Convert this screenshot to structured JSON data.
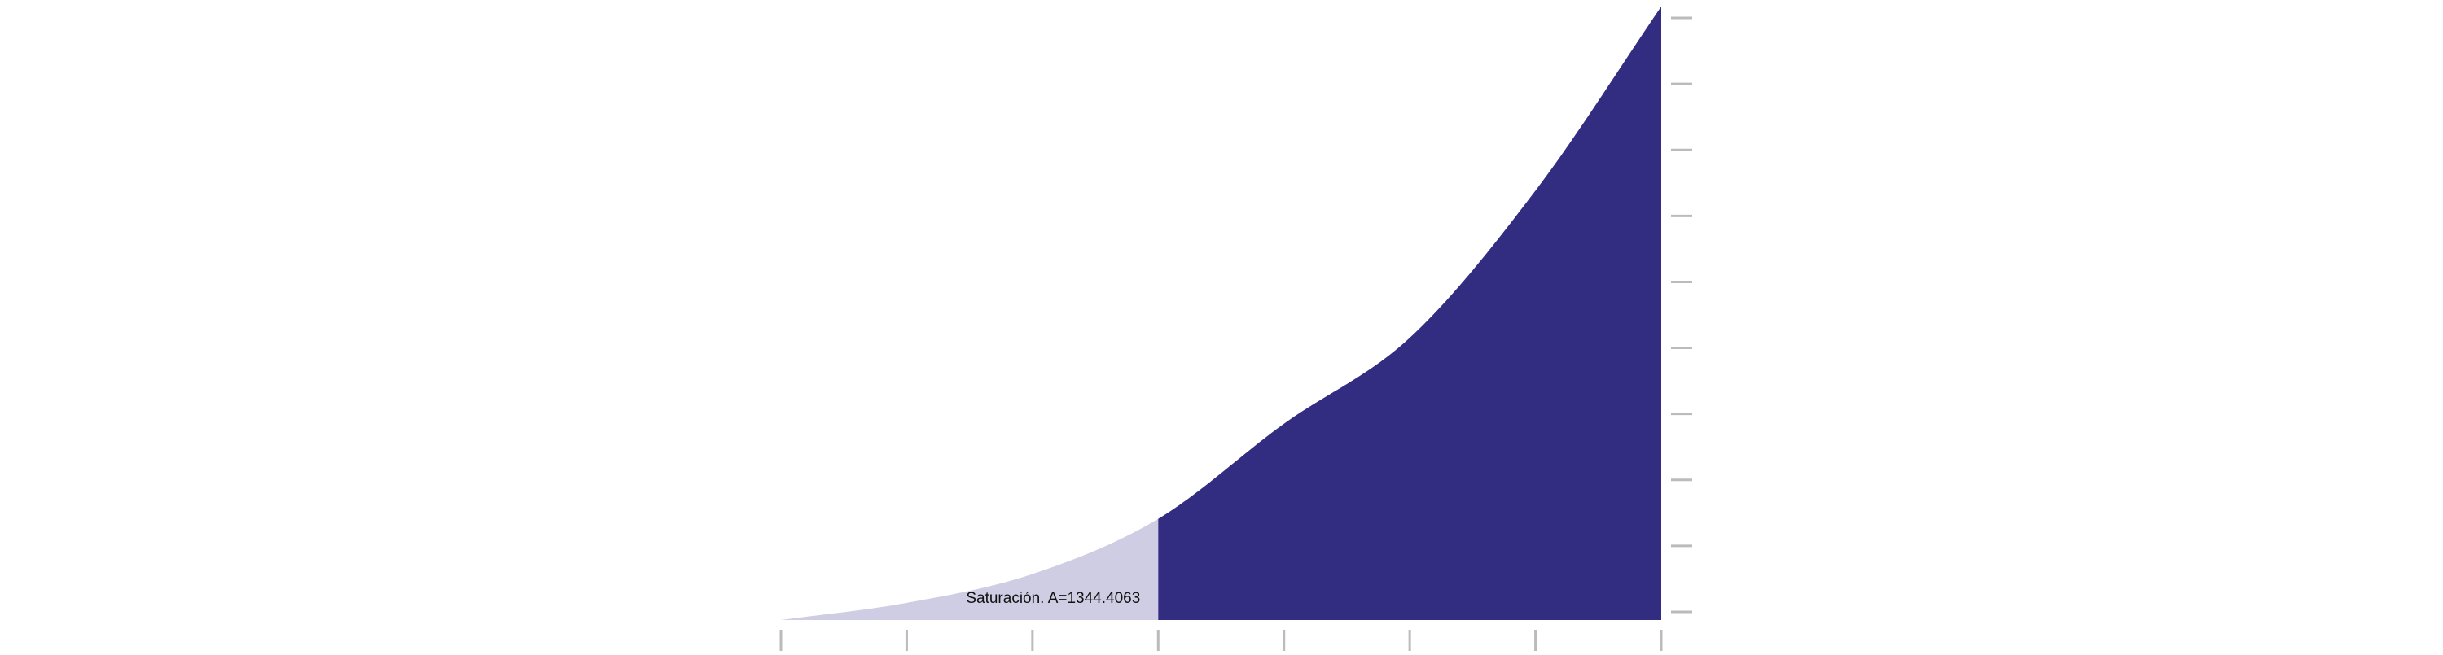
{
  "chart_data": {
    "type": "area",
    "title": "",
    "xlabel": "",
    "ylabel": "",
    "x_tick_count": 8,
    "y_tick_count": 10,
    "grid": false,
    "legend": "none",
    "x": [
      0,
      1,
      2,
      3,
      4,
      5,
      6,
      7
    ],
    "y": [
      0.0,
      0.028,
      0.075,
      0.165,
      0.32,
      0.46,
      0.7,
      1.0
    ],
    "regions": [
      {
        "name": "Saturación",
        "label": "Saturación. A=1344.4063",
        "x_range": [
          0,
          3
        ],
        "color": "#cfcde3"
      },
      {
        "name": "",
        "x_range": [
          3,
          7
        ],
        "color": "#332d82"
      }
    ],
    "colors": {
      "tick": "#bbbbbb",
      "label": "#111111"
    }
  }
}
